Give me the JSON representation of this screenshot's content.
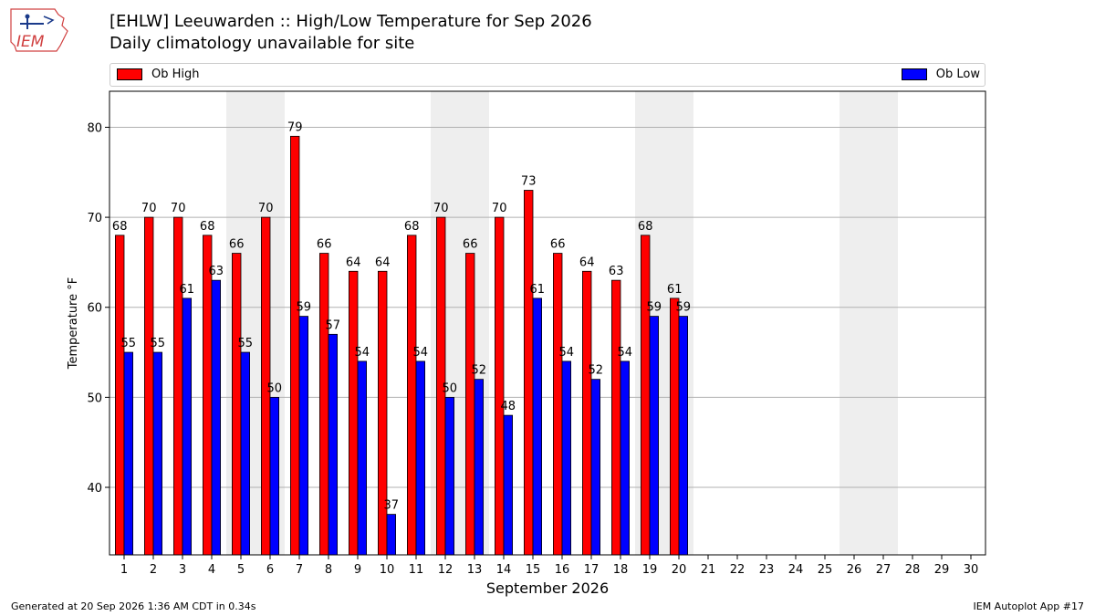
{
  "logo": {
    "text": "IEM"
  },
  "header": {
    "title": "[EHLW] Leeuwarden :: High/Low Temperature for Sep 2026",
    "subtitle": "Daily climatology unavailable for site"
  },
  "footer": {
    "left": "Generated at 20 Sep 2026 1:36 AM CDT in 0.34s",
    "right": "IEM Autoplot App #17"
  },
  "colors": {
    "high": "#ff0000",
    "low": "#0000ff",
    "weekend": "#eeeeee",
    "grid": "#b0b0b0"
  },
  "chart_data": {
    "type": "bar",
    "title": "[EHLW] Leeuwarden :: High/Low Temperature for Sep 2026",
    "subtitle": "Daily climatology unavailable for site",
    "xlabel": "September 2026",
    "ylabel": "Temperature °F",
    "ylim": [
      32.5,
      84
    ],
    "yticks": [
      40,
      50,
      60,
      70,
      80
    ],
    "grid": true,
    "legend_placement": "top",
    "categories": [
      "1",
      "2",
      "3",
      "4",
      "5",
      "6",
      "7",
      "8",
      "9",
      "10",
      "11",
      "12",
      "13",
      "14",
      "15",
      "16",
      "17",
      "18",
      "19",
      "20",
      "21",
      "22",
      "23",
      "24",
      "25",
      "26",
      "27",
      "28",
      "29",
      "30"
    ],
    "weekend_days": [
      5,
      6,
      12,
      13,
      19,
      20,
      26,
      27
    ],
    "series": [
      {
        "name": "Ob High",
        "color": "#ff0000",
        "values": [
          68,
          70,
          70,
          68,
          66,
          70,
          79,
          66,
          64,
          64,
          68,
          70,
          66,
          70,
          73,
          66,
          64,
          63,
          68,
          61,
          null,
          null,
          null,
          null,
          null,
          null,
          null,
          null,
          null,
          null
        ]
      },
      {
        "name": "Ob Low",
        "color": "#0000ff",
        "values": [
          55,
          55,
          61,
          63,
          55,
          50,
          59,
          57,
          54,
          37,
          54,
          50,
          52,
          48,
          61,
          54,
          52,
          54,
          59,
          59,
          null,
          null,
          null,
          null,
          null,
          null,
          null,
          null,
          null,
          null
        ]
      }
    ]
  }
}
